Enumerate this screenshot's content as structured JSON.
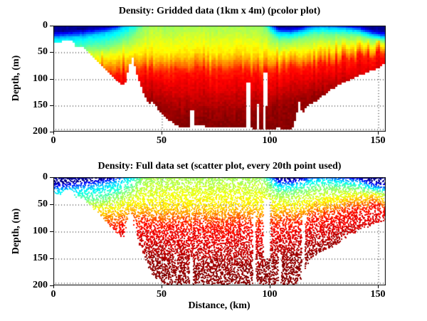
{
  "figure": {
    "background": "#ffffff",
    "text_color": "#000000"
  },
  "chart_data": [
    {
      "type": "pcolor",
      "title": "Density: Gridded data (1km x 4m) (pcolor plot)",
      "xlabel": "",
      "ylabel": "Depth, (m)",
      "xlim": [
        0,
        153.5
      ],
      "ylim": [
        0,
        200
      ],
      "y_axis_reversed": true,
      "xticks": [
        0,
        50,
        100,
        150
      ],
      "yticks": [
        0,
        50,
        100,
        150,
        200
      ],
      "grid": "dotted",
      "colormap": "jet",
      "grid_resolution": {
        "dx_km": 1,
        "dz_m": 4
      },
      "field": {
        "comment": "density expressed as jet colormap fraction t at anchor depths; columns are anchors t, rows are stations along x",
        "anchor_t": [
          0.02,
          0.15,
          0.33,
          0.5,
          0.65,
          0.73,
          0.85,
          0.98
        ],
        "stations_km": [
          0,
          5,
          10,
          15,
          20,
          25,
          30,
          36,
          45,
          60,
          80,
          95,
          101,
          104,
          110,
          115,
          119,
          124,
          130,
          136,
          142,
          147,
          152,
          155
        ],
        "anchor_depths_m": [
          [
            11,
            17,
            24,
            48,
            70,
            84,
            100,
            170
          ],
          [
            10,
            16,
            23,
            46,
            68,
            82,
            98,
            168
          ],
          [
            8,
            14,
            22,
            45,
            66,
            80,
            96,
            165
          ],
          [
            6,
            12,
            20,
            44,
            64,
            78,
            94,
            162
          ],
          [
            4,
            9,
            17,
            42,
            62,
            76,
            92,
            158
          ],
          [
            2,
            6,
            14,
            40,
            60,
            74,
            90,
            155
          ],
          [
            -3,
            1,
            8,
            34,
            58,
            72,
            88,
            152
          ],
          [
            -25,
            -15,
            -5,
            22,
            55,
            68,
            85,
            150
          ],
          [
            -40,
            -32,
            -24,
            -15,
            54,
            67,
            84,
            148
          ],
          [
            -40,
            -32,
            -24,
            -16,
            53,
            68,
            86,
            170
          ],
          [
            -40,
            -32,
            -24,
            -16,
            53,
            68,
            87,
            170
          ],
          [
            -38,
            -30,
            -22,
            -12,
            54,
            70,
            88,
            168
          ],
          [
            -10,
            -4,
            6,
            20,
            55,
            69,
            86,
            160
          ],
          [
            3,
            8,
            14,
            28,
            56,
            69,
            85,
            155
          ],
          [
            4,
            9,
            15,
            28,
            55,
            68,
            84,
            150
          ],
          [
            1,
            5,
            11,
            24,
            54,
            66,
            80,
            145
          ],
          [
            -8,
            -2,
            6,
            20,
            50,
            62,
            76,
            138
          ],
          [
            -10,
            -4,
            4,
            18,
            46,
            58,
            72,
            132
          ],
          [
            -8,
            -2,
            5,
            19,
            44,
            55,
            68,
            129
          ],
          [
            -4,
            1,
            7,
            19,
            41,
            52,
            63,
            127
          ],
          [
            0,
            5,
            11,
            21,
            39,
            49,
            59,
            125
          ],
          [
            6,
            12,
            18,
            26,
            37,
            46,
            55,
            123
          ],
          [
            10,
            16,
            22,
            28,
            36,
            44,
            52,
            121
          ],
          [
            8,
            15,
            22,
            30,
            36,
            43,
            50,
            120
          ]
        ]
      },
      "bathymetry_km_m": [
        [
          0,
          30
        ],
        [
          3,
          33
        ],
        [
          4.5,
          26
        ],
        [
          9,
          26
        ],
        [
          10.5,
          38
        ],
        [
          14,
          40
        ],
        [
          16,
          48
        ],
        [
          18,
          57
        ],
        [
          20,
          66
        ],
        [
          22,
          74
        ],
        [
          24,
          82
        ],
        [
          26,
          90
        ],
        [
          28,
          98
        ],
        [
          30,
          106
        ],
        [
          32,
          113
        ],
        [
          33.5,
          108
        ],
        [
          34.5,
          88
        ],
        [
          35.5,
          70
        ],
        [
          36.5,
          58
        ],
        [
          37.5,
          74
        ],
        [
          38.5,
          92
        ],
        [
          40,
          112
        ],
        [
          42,
          132
        ],
        [
          44,
          148
        ],
        [
          46,
          143
        ],
        [
          48,
          156
        ],
        [
          50,
          164
        ],
        [
          52,
          172
        ],
        [
          54,
          180
        ],
        [
          56,
          186
        ],
        [
          58,
          190
        ],
        [
          60,
          192
        ],
        [
          63,
          193
        ],
        [
          66,
          188
        ],
        [
          70,
          190
        ],
        [
          75,
          192
        ],
        [
          80,
          193
        ],
        [
          85,
          193
        ],
        [
          90,
          193
        ],
        [
          95,
          195
        ],
        [
          100,
          196
        ],
        [
          104,
          193
        ],
        [
          108,
          197
        ],
        [
          110,
          198
        ],
        [
          112,
          172
        ],
        [
          113.5,
          142
        ],
        [
          115,
          168
        ],
        [
          117,
          152
        ],
        [
          120,
          146
        ],
        [
          123,
          139
        ],
        [
          128,
          122
        ],
        [
          134,
          108
        ],
        [
          139,
          97
        ],
        [
          145,
          88
        ],
        [
          150,
          81
        ],
        [
          153.5,
          70
        ]
      ],
      "data_gaps_km_depth": [
        [
          63,
          64.8,
          160,
          210
        ],
        [
          89.5,
          91,
          108,
          210
        ],
        [
          94.2,
          95,
          150,
          210
        ],
        [
          97,
          98.4,
          90,
          210
        ],
        [
          98.4,
          99.3,
          90,
          152
        ]
      ]
    },
    {
      "type": "scatter",
      "title": "Density: Full data set (scatter plot, every 20th point used)",
      "xlabel": "Distance, (km)",
      "ylabel": "Depth, (m)",
      "xlim": [
        0,
        153.5
      ],
      "ylim": [
        0,
        200
      ],
      "y_axis_reversed": true,
      "xticks": [
        0,
        50,
        100,
        150
      ],
      "yticks": [
        0,
        50,
        100,
        150,
        200
      ],
      "grid": "dotted",
      "colormap": "jet",
      "marker_px": 2,
      "subsampling": "every 20th point",
      "field": "same_as_plot_0",
      "bathymetry_km_m": [
        [
          0,
          30
        ],
        [
          3,
          33
        ],
        [
          4.5,
          26
        ],
        [
          9,
          26
        ],
        [
          10.5,
          37
        ],
        [
          14,
          42
        ],
        [
          17,
          52
        ],
        [
          20,
          64
        ],
        [
          23,
          78
        ],
        [
          26,
          90
        ],
        [
          29,
          103
        ],
        [
          32,
          112
        ],
        [
          33,
          108
        ],
        [
          34,
          78
        ],
        [
          35,
          62
        ],
        [
          36.5,
          72
        ],
        [
          38,
          96
        ],
        [
          40,
          128
        ],
        [
          43,
          158
        ],
        [
          46,
          183
        ],
        [
          49,
          194
        ],
        [
          52,
          199
        ],
        [
          112,
          199
        ],
        [
          114,
          190
        ],
        [
          116,
          180
        ],
        [
          118,
          152
        ],
        [
          121,
          146
        ],
        [
          125,
          138
        ],
        [
          131,
          124
        ],
        [
          137,
          107
        ],
        [
          143,
          96
        ],
        [
          148,
          88
        ],
        [
          152,
          82
        ],
        [
          155,
          76
        ]
      ],
      "data_gaps_km_depth": [
        [
          55,
          56,
          183,
          210
        ],
        [
          63,
          64.6,
          148,
          210
        ],
        [
          92.1,
          93.5,
          68,
          210
        ],
        [
          97,
          100.3,
          40,
          150
        ],
        [
          104,
          105.2,
          140,
          210
        ],
        [
          114.8,
          116.3,
          70,
          210
        ]
      ]
    }
  ]
}
